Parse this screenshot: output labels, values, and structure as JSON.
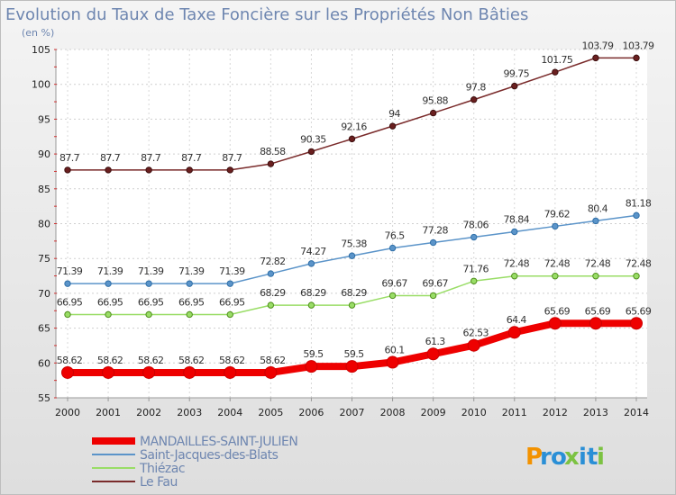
{
  "chart_data": {
    "type": "line",
    "title": "Evolution du Taux de Taxe Foncière sur les Propriétés Non Bâties",
    "subtitle": "(en %)",
    "x": [
      "2000",
      "2001",
      "2002",
      "2003",
      "2004",
      "2005",
      "2006",
      "2007",
      "2008",
      "2009",
      "2010",
      "2011",
      "2012",
      "2013",
      "2014"
    ],
    "yticks": [
      55,
      60,
      65,
      70,
      75,
      80,
      85,
      90,
      95,
      100,
      105
    ],
    "ylim": [
      55,
      105
    ],
    "grid": true,
    "legend_position": "bottom-left",
    "series": [
      {
        "name": "MANDAILLES-SAINT-JULIEN",
        "color": "#ee0000",
        "values": [
          58.62,
          58.62,
          58.62,
          58.62,
          58.62,
          58.62,
          59.5,
          59.5,
          60.1,
          61.3,
          62.53,
          64.4,
          65.69,
          65.69,
          65.69
        ],
        "labels": [
          "58.62",
          "58.62",
          "58.62",
          "58.62",
          "58.62",
          "58.62",
          "59.5",
          "59.5",
          "60.1",
          "61.3",
          "62.53",
          "64.4",
          "65.69",
          "65.69",
          "65.69"
        ]
      },
      {
        "name": "Saint-Jacques-des-Blats",
        "color": "#5b94c9",
        "values": [
          71.39,
          71.39,
          71.39,
          71.39,
          71.39,
          72.82,
          74.27,
          75.38,
          76.5,
          77.28,
          78.06,
          78.84,
          79.62,
          80.4,
          81.18
        ],
        "labels": [
          "71.39",
          "71.39",
          "71.39",
          "71.39",
          "71.39",
          "72.82",
          "74.27",
          "75.38",
          "76.5",
          "77.28",
          "78.06",
          "78.84",
          "79.62",
          "80.4",
          "81.18"
        ]
      },
      {
        "name": "Thiézac",
        "color": "#99dd66",
        "values": [
          66.95,
          66.95,
          66.95,
          66.95,
          66.95,
          68.29,
          68.29,
          68.29,
          69.67,
          69.67,
          71.76,
          72.48,
          72.48,
          72.48,
          72.48
        ],
        "labels": [
          "66.95",
          "66.95",
          "66.95",
          "66.95",
          "66.95",
          "68.29",
          "68.29",
          "68.29",
          "69.67",
          "69.67",
          "71.76",
          "72.48",
          "72.48",
          "72.48",
          "72.48"
        ]
      },
      {
        "name": "Le Fau",
        "color": "#7a2b2b",
        "values": [
          87.7,
          87.7,
          87.7,
          87.7,
          87.7,
          88.58,
          90.35,
          92.16,
          94,
          95.88,
          97.8,
          99.75,
          101.75,
          103.79,
          103.79
        ],
        "labels": [
          "87.7",
          "87.7",
          "87.7",
          "87.7",
          "87.7",
          "88.58",
          "90.35",
          "92.16",
          "94",
          "95.88",
          "97.8",
          "99.75",
          "101.75",
          "103.79",
          "103.79"
        ]
      }
    ]
  },
  "logo": {
    "letters": [
      "P",
      "r",
      "o",
      "x",
      "i",
      "t",
      "i"
    ],
    "colors": [
      "#f39200",
      "#2a8fd6",
      "#2a8fd6",
      "#7cc242",
      "#2a8fd6",
      "#2a8fd6",
      "#7cc242"
    ]
  }
}
